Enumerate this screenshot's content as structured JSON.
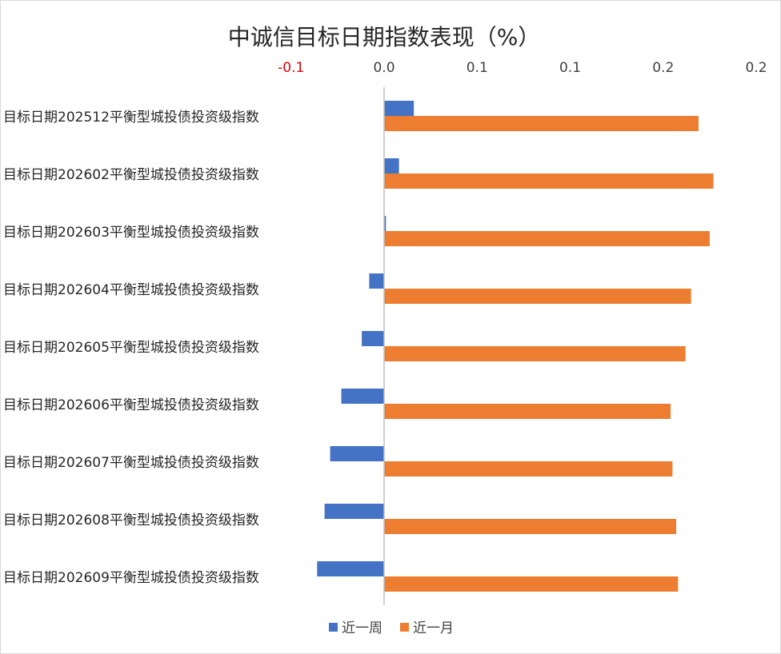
{
  "chart_data": {
    "type": "bar",
    "orientation": "horizontal",
    "title": "中诚信目标日期指数表现（%）",
    "xlabel": "",
    "ylabel": "",
    "x_ticks": [
      "-0.1",
      "0.0",
      "0.1",
      "0.1",
      "0.2",
      "0.2"
    ],
    "x_tick_values": [
      -0.05,
      0.0,
      0.05,
      0.1,
      0.15,
      0.2
    ],
    "xlim": [
      -0.05,
      0.2
    ],
    "axis_position": "top",
    "grid": false,
    "legend_position": "bottom",
    "categories": [
      "目标日期202512平衡型城投债投资级指数",
      "目标日期202602平衡型城投债投资级指数",
      "目标日期202603平衡型城投债投资级指数",
      "目标日期202604平衡型城投债投资级指数",
      "目标日期202605平衡型城投债投资级指数",
      "目标日期202606平衡型城投债投资级指数",
      "目标日期202607平衡型城投债投资级指数",
      "目标日期202608平衡型城投债投资级指数",
      "目标日期202609平衡型城投债投资级指数"
    ],
    "series": [
      {
        "name": "近一周",
        "color": "#4472c4",
        "values": [
          0.016,
          0.008,
          0.001,
          -0.008,
          -0.012,
          -0.023,
          -0.029,
          -0.032,
          -0.036
        ]
      },
      {
        "name": "近一月",
        "color": "#ed7d31",
        "values": [
          0.169,
          0.177,
          0.175,
          0.165,
          0.162,
          0.154,
          0.155,
          0.157,
          0.158
        ]
      }
    ]
  }
}
